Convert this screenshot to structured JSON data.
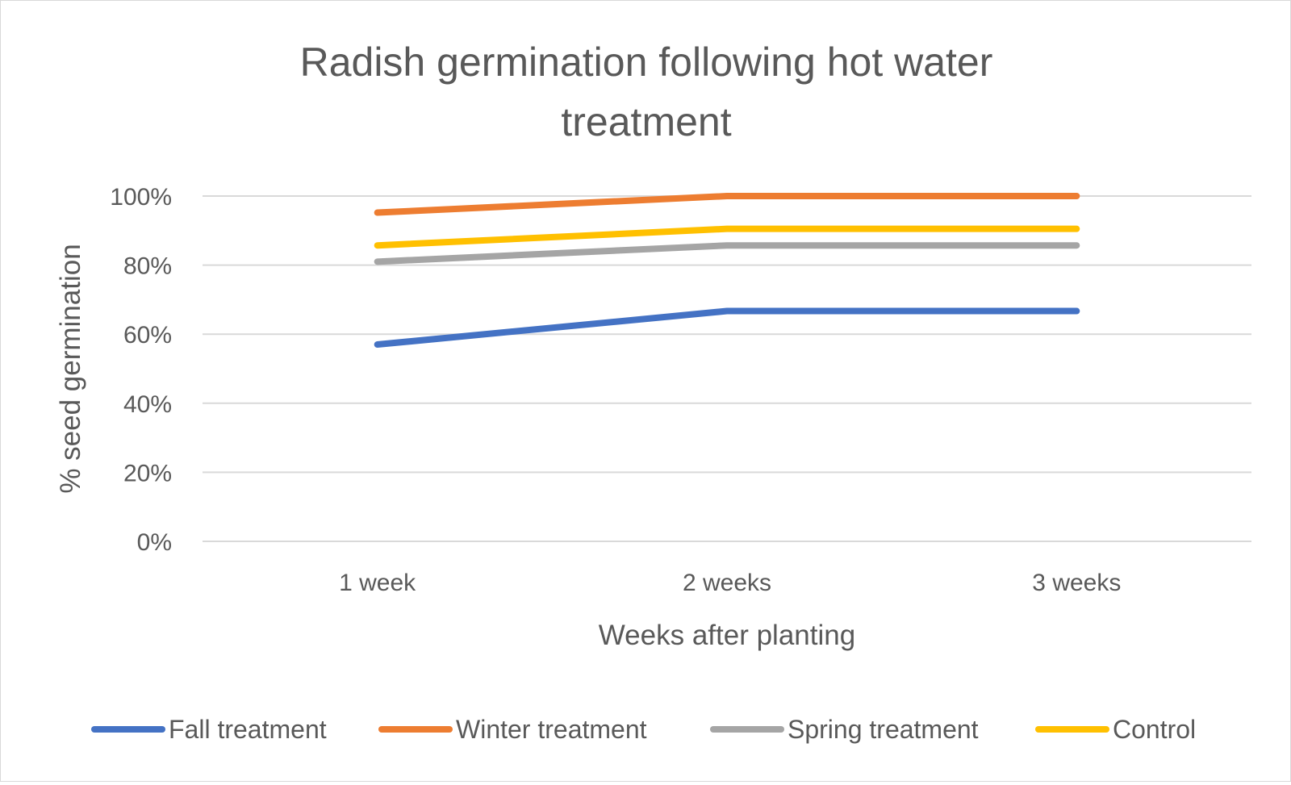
{
  "chart_data": {
    "type": "line",
    "title_lines": [
      "Radish germination following hot water",
      "treatment"
    ],
    "xlabel": "Weeks after planting",
    "ylabel": "% seed germination",
    "categories": [
      "1 week",
      "2 weeks",
      "3 weeks"
    ],
    "ylim": [
      0,
      100
    ],
    "yticks": [
      0,
      20,
      40,
      60,
      80,
      100
    ],
    "ytick_labels": [
      "0%",
      "20%",
      "40%",
      "60%",
      "80%",
      "100%"
    ],
    "grid": true,
    "legend_position": "bottom",
    "series": [
      {
        "name": "Fall treatment",
        "color": "#4472C4",
        "values": [
          57,
          66.7,
          66.7
        ]
      },
      {
        "name": "Winter treatment",
        "color": "#ED7D31",
        "values": [
          95.2,
          100,
          100
        ]
      },
      {
        "name": "Spring treatment",
        "color": "#A5A5A5",
        "values": [
          81,
          85.7,
          85.7
        ]
      },
      {
        "name": "Control",
        "color": "#FFC000",
        "values": [
          85.7,
          90.5,
          90.5
        ]
      }
    ]
  }
}
